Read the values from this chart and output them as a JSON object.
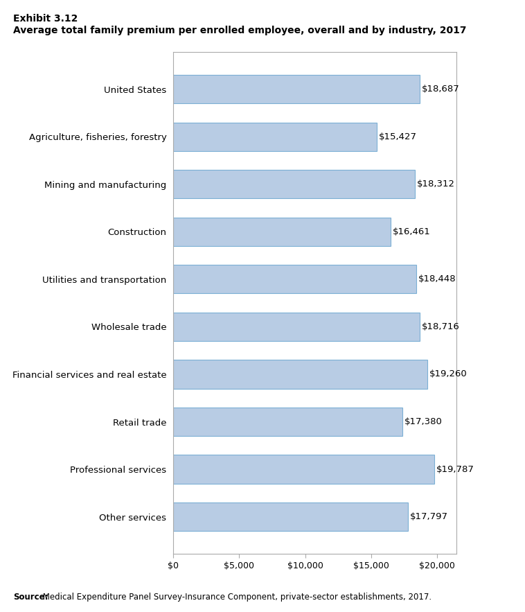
{
  "title_line1": "Exhibit 3.12",
  "title_line2": "Average total family premium per enrolled employee, overall and by industry, 2017",
  "categories": [
    "United States",
    "Agriculture, fisheries, forestry",
    "Mining and manufacturing",
    "Construction",
    "Utilities and transportation",
    "Wholesale trade",
    "Financial services and real estate",
    "Retail trade",
    "Professional services",
    "Other services"
  ],
  "values": [
    18687,
    15427,
    18312,
    16461,
    18448,
    18716,
    19260,
    17380,
    19787,
    17797
  ],
  "bar_color": "#b8cce4",
  "bar_edge_color": "#7bafd4",
  "xlim": [
    0,
    21500
  ],
  "xticks": [
    0,
    5000,
    10000,
    15000,
    20000
  ],
  "xtick_labels": [
    "$0",
    "$5,000",
    "$10,000",
    "$15,000",
    "$20,000"
  ],
  "source_bold": "Source:",
  "source_rest": " Medical Expenditure Panel Survey-Insurance Component, private-sector establishments, 2017.",
  "background_color": "#ffffff",
  "label_fontsize": 9.5,
  "title1_fontsize": 10,
  "title2_fontsize": 10,
  "tick_fontsize": 9,
  "value_fontsize": 9.5
}
